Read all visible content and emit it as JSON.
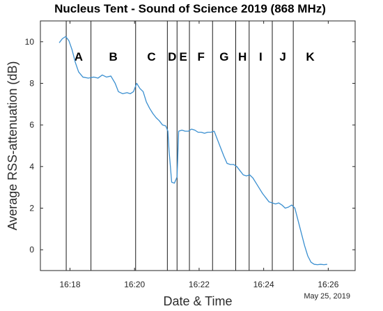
{
  "chart_data": {
    "type": "line",
    "title": "Nucleus Tent - Sound of Science 2019 (868 MHz)",
    "xlabel": "Date & Time",
    "ylabel": "Average RSS-attenuation (dB)",
    "date_annotation": "May 25, 2019",
    "x_unit": "time (hh:mm)",
    "xlim": [
      "16:17:05",
      "16:26:50"
    ],
    "ylim": [
      -1.0,
      11.0
    ],
    "x_ticks": [
      "16:18",
      "16:20",
      "16:22",
      "16:24",
      "16:26"
    ],
    "y_ticks": [
      0,
      2,
      4,
      6,
      8,
      10
    ],
    "grid": false,
    "line_color": "#3a8fd0",
    "series": [
      {
        "points": [
          [
            "16:17:40",
            9.95
          ],
          [
            "16:17:46",
            10.15
          ],
          [
            "16:17:52",
            10.25
          ],
          [
            "16:17:58",
            10.05
          ],
          [
            "16:18:04",
            9.6
          ],
          [
            "16:18:10",
            9.0
          ],
          [
            "16:18:16",
            8.55
          ],
          [
            "16:18:24",
            8.3
          ],
          [
            "16:18:34",
            8.25
          ],
          [
            "16:18:44",
            8.3
          ],
          [
            "16:18:52",
            8.25
          ],
          [
            "16:19:00",
            8.4
          ],
          [
            "16:19:08",
            8.3
          ],
          [
            "16:19:16",
            8.35
          ],
          [
            "16:19:24",
            8.0
          ],
          [
            "16:19:30",
            7.6
          ],
          [
            "16:19:38",
            7.5
          ],
          [
            "16:19:46",
            7.55
          ],
          [
            "16:19:52",
            7.5
          ],
          [
            "16:19:58",
            7.6
          ],
          [
            "16:20:04",
            8.0
          ],
          [
            "16:20:10",
            7.75
          ],
          [
            "16:20:16",
            7.6
          ],
          [
            "16:20:22",
            7.1
          ],
          [
            "16:20:28",
            6.8
          ],
          [
            "16:20:34",
            6.55
          ],
          [
            "16:20:40",
            6.35
          ],
          [
            "16:20:46",
            6.2
          ],
          [
            "16:20:52",
            6.0
          ],
          [
            "16:20:58",
            5.95
          ],
          [
            "16:21:02",
            5.7
          ],
          [
            "16:21:04",
            4.8
          ],
          [
            "16:21:06",
            4.2
          ],
          [
            "16:21:09",
            3.25
          ],
          [
            "16:21:14",
            3.2
          ],
          [
            "16:21:19",
            3.5
          ],
          [
            "16:21:22",
            5.7
          ],
          [
            "16:21:28",
            5.75
          ],
          [
            "16:21:34",
            5.7
          ],
          [
            "16:21:40",
            5.7
          ],
          [
            "16:21:46",
            5.8
          ],
          [
            "16:21:52",
            5.75
          ],
          [
            "16:21:58",
            5.65
          ],
          [
            "16:22:04",
            5.65
          ],
          [
            "16:22:10",
            5.6
          ],
          [
            "16:22:16",
            5.65
          ],
          [
            "16:22:22",
            5.65
          ],
          [
            "16:22:28",
            5.7
          ],
          [
            "16:22:34",
            5.3
          ],
          [
            "16:22:40",
            4.9
          ],
          [
            "16:22:46",
            4.5
          ],
          [
            "16:22:52",
            4.15
          ],
          [
            "16:22:58",
            4.1
          ],
          [
            "16:23:04",
            4.1
          ],
          [
            "16:23:10",
            4.0
          ],
          [
            "16:23:16",
            3.8
          ],
          [
            "16:23:22",
            3.6
          ],
          [
            "16:23:28",
            3.55
          ],
          [
            "16:23:34",
            3.6
          ],
          [
            "16:23:40",
            3.45
          ],
          [
            "16:23:46",
            3.2
          ],
          [
            "16:23:52",
            2.95
          ],
          [
            "16:23:58",
            2.7
          ],
          [
            "16:24:04",
            2.5
          ],
          [
            "16:24:10",
            2.3
          ],
          [
            "16:24:16",
            2.25
          ],
          [
            "16:24:22",
            2.2
          ],
          [
            "16:24:28",
            2.25
          ],
          [
            "16:24:34",
            2.15
          ],
          [
            "16:24:40",
            2.0
          ],
          [
            "16:24:46",
            2.05
          ],
          [
            "16:24:52",
            2.15
          ],
          [
            "16:24:58",
            2.0
          ],
          [
            "16:25:04",
            1.4
          ],
          [
            "16:25:10",
            0.8
          ],
          [
            "16:25:16",
            0.2
          ],
          [
            "16:25:22",
            -0.3
          ],
          [
            "16:25:28",
            -0.6
          ],
          [
            "16:25:34",
            -0.7
          ],
          [
            "16:25:40",
            -0.72
          ],
          [
            "16:25:46",
            -0.7
          ],
          [
            "16:25:52",
            -0.72
          ],
          [
            "16:25:58",
            -0.7
          ]
        ]
      }
    ],
    "regions": [
      {
        "label": "A",
        "start": "16:17:53",
        "end": "16:18:39"
      },
      {
        "label": "B",
        "start": "16:18:39",
        "end": "16:20:02"
      },
      {
        "label": "C",
        "start": "16:20:02",
        "end": "16:21:01"
      },
      {
        "label": "D",
        "start": "16:21:01",
        "end": "16:21:19"
      },
      {
        "label": "E",
        "start": "16:21:19",
        "end": "16:21:42"
      },
      {
        "label": "F",
        "start": "16:21:42",
        "end": "16:22:25"
      },
      {
        "label": "G",
        "start": "16:22:25",
        "end": "16:23:08"
      },
      {
        "label": "H",
        "start": "16:23:08",
        "end": "16:23:33"
      },
      {
        "label": "I",
        "start": "16:23:33",
        "end": "16:24:16"
      },
      {
        "label": "J",
        "start": "16:24:16",
        "end": "16:24:55"
      },
      {
        "label": "K",
        "start": "16:24:55",
        "end": "16:25:58"
      }
    ]
  }
}
